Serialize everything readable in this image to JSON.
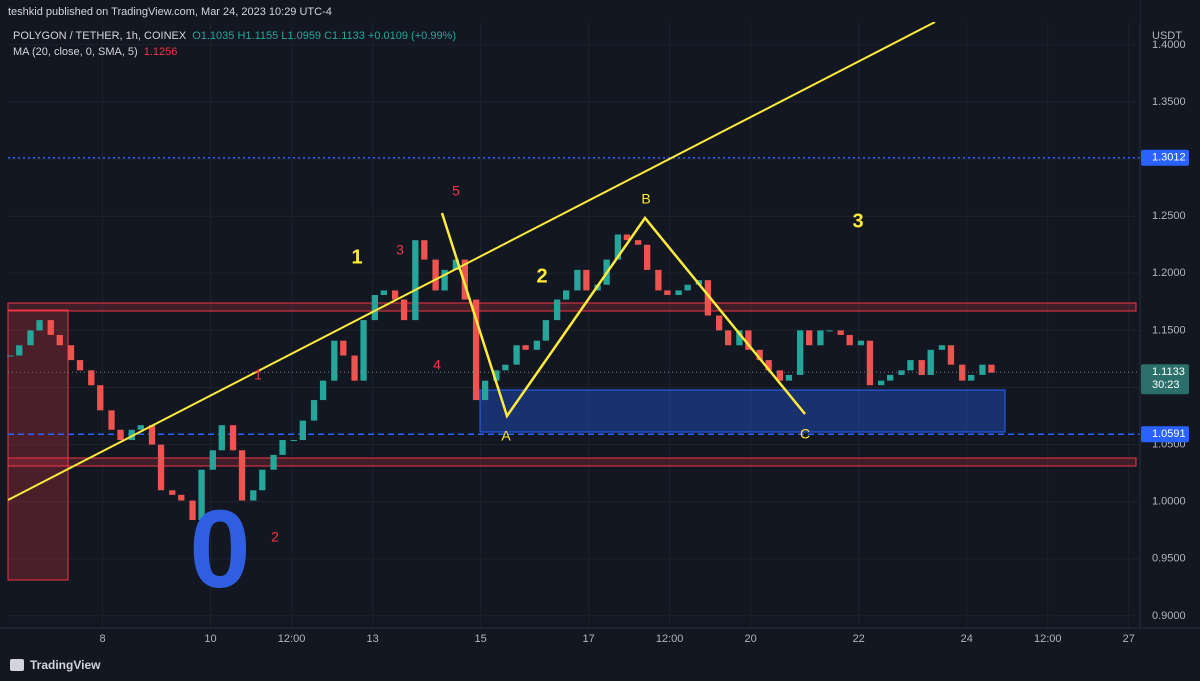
{
  "header": {
    "publisher": "teshkid published on TradingView.com, Mar 24, 2023 10:29 UTC-4",
    "symbol": "POLYGON / TETHER, 1h, COINEX",
    "ohlc": "O1.1035 H1.1155 L1.0959 C1.1133 +0.0109 (+0.99%)",
    "indicator": "MA (20, close, 0, SMA, 5)",
    "indicator_value": 1.1256
  },
  "footer": {
    "brand": "TradingView"
  },
  "chart_data": {
    "type": "candlestick",
    "currency": "USDT",
    "up_color": "#26a69a",
    "down_color": "#ef5350",
    "grid": true,
    "x": [
      -41,
      -37,
      -32,
      -28,
      -23,
      -19,
      -14,
      -10,
      -5,
      -1,
      4,
      8,
      13,
      17,
      22,
      26,
      31,
      35,
      40,
      44,
      49,
      53,
      58,
      62,
      67,
      71,
      76,
      80,
      85,
      89,
      94,
      98,
      103,
      107,
      112,
      116,
      121,
      125,
      130,
      134,
      139,
      143,
      148,
      152,
      157,
      161,
      166,
      170,
      175,
      179,
      184,
      188,
      193,
      197,
      202,
      206,
      211,
      215,
      220,
      224,
      229,
      233,
      238,
      242,
      247,
      251,
      256,
      260,
      265,
      269,
      274,
      278,
      283,
      287,
      292,
      296,
      301,
      305,
      310,
      314,
      319,
      323,
      328,
      332,
      337,
      341,
      346,
      350,
      355,
      359,
      364,
      368,
      373,
      377,
      382,
      386,
      391,
      395
    ],
    "close": [
      1.128,
      1.137,
      1.15,
      1.159,
      1.146,
      1.137,
      1.124,
      1.115,
      1.102,
      1.08,
      1.063,
      1.054,
      1.063,
      1.067,
      1.05,
      1.01,
      1.006,
      1.001,
      0.984,
      1.028,
      1.045,
      1.067,
      1.045,
      1.001,
      1.01,
      1.028,
      1.041,
      1.054,
      1.054,
      1.071,
      1.089,
      1.106,
      1.141,
      1.128,
      1.106,
      1.159,
      1.181,
      1.185,
      1.177,
      1.159,
      1.229,
      1.212,
      1.185,
      1.203,
      1.212,
      1.177,
      1.089,
      1.106,
      1.115,
      1.12,
      1.137,
      1.133,
      1.141,
      1.159,
      1.177,
      1.185,
      1.203,
      1.185,
      1.19,
      1.212,
      1.234,
      1.229,
      1.225,
      1.203,
      1.185,
      1.181,
      1.185,
      1.19,
      1.194,
      1.163,
      1.15,
      1.137,
      1.15,
      1.133,
      1.124,
      1.115,
      1.106,
      1.111,
      1.15,
      1.137,
      1.15,
      1.15,
      1.146,
      1.137,
      1.141,
      1.102,
      1.106,
      1.111,
      1.115,
      1.124,
      1.111,
      1.133,
      1.137,
      1.12,
      1.106,
      1.111,
      1.12,
      1.113
    ],
    "xlim": [
      -42,
      461
    ],
    "xticks": [
      {
        "value": 0,
        "label": "8"
      },
      {
        "value": 48,
        "label": "10"
      },
      {
        "value": 84,
        "label": "12:00"
      },
      {
        "value": 120,
        "label": "13"
      },
      {
        "value": 168,
        "label": "15"
      },
      {
        "value": 216,
        "label": "17"
      },
      {
        "value": 252,
        "label": "12:00"
      },
      {
        "value": 288,
        "label": "20"
      },
      {
        "value": 336,
        "label": "22"
      },
      {
        "value": 384,
        "label": "24"
      },
      {
        "value": 420,
        "label": "12:00"
      },
      {
        "value": 456,
        "label": "27"
      }
    ],
    "ylim": [
      0.8894,
      1.4148
    ],
    "yticks": [
      {
        "value": 0.9,
        "label": "0.9000"
      },
      {
        "value": 0.95,
        "label": "0.9500"
      },
      {
        "value": 1.0,
        "label": "1.0000"
      },
      {
        "value": 1.05,
        "label": "1.0500"
      },
      {
        "value": 1.1,
        "label": "1.1000"
      },
      {
        "value": 1.15,
        "label": "1.1500"
      },
      {
        "value": 1.2,
        "label": "1.2000"
      },
      {
        "value": 1.25,
        "label": "1.2500"
      },
      {
        "value": 1.3,
        "label": "1.3000"
      },
      {
        "value": 1.35,
        "label": "1.3500"
      },
      {
        "value": 1.4,
        "label": "1.4000"
      }
    ],
    "levels": [
      {
        "value": 1.3012,
        "color": "#2962ff",
        "dash": "2 3"
      },
      {
        "value": 1.0591,
        "color": "#2962ff",
        "dash": "6 4"
      }
    ],
    "last_price": 1.1133,
    "countdown": "30:23",
    "wave_labels": [
      "1",
      "2",
      "3"
    ],
    "correction_labels": [
      "A",
      "B",
      "C"
    ],
    "subwave_labels": [
      "1",
      "2",
      "3",
      "4",
      "5"
    ],
    "origin_label": "0"
  }
}
